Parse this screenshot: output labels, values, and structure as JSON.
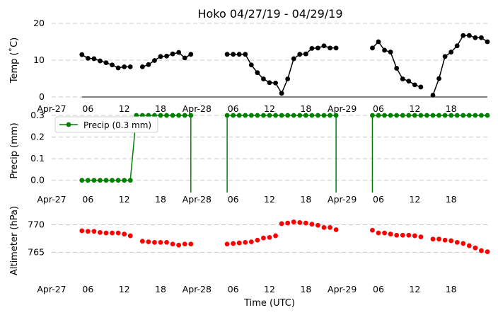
{
  "chart_data": {
    "title": "Hoko 04/27/19 - 04/29/19",
    "xlabel": "Time (UTC)",
    "x_tick_labels": [
      "Apr-27",
      "06",
      "12",
      "18",
      "Apr-28",
      "06",
      "12",
      "18",
      "Apr-29",
      "06",
      "12",
      "18"
    ],
    "x_tick_hours": [
      0,
      6,
      12,
      18,
      24,
      30,
      36,
      42,
      48,
      54,
      60,
      66
    ],
    "x_range_hours": [
      0,
      72
    ],
    "grid": "horizontal dashed",
    "panels": [
      {
        "type": "line",
        "ylabel": "Temp ($^{\\circ}$C)",
        "ylabel_display": "Temp (˚C)",
        "ylim": [
          0,
          20
        ],
        "yticks": [
          0,
          10,
          20
        ],
        "color": "#000000",
        "baseline": 0,
        "series": [
          {
            "name": "",
            "hours": [
              5,
              6,
              7,
              8,
              9,
              10,
              11,
              12,
              13
            ],
            "values": [
              11.5,
              10.5,
              10.4,
              9.8,
              9.3,
              8.7,
              7.9,
              8.2,
              8.2
            ]
          },
          {
            "name": "",
            "hours": [
              15,
              16,
              17,
              18,
              19,
              20,
              21,
              22,
              23
            ],
            "values": [
              8.2,
              8.8,
              9.9,
              11.0,
              11.1,
              11.7,
              12.1,
              10.6,
              11.6
            ]
          },
          {
            "name": "",
            "hours": [
              29,
              30,
              31,
              32,
              33,
              34,
              35,
              36,
              37,
              38,
              39,
              40,
              41,
              42,
              43,
              44,
              45,
              46,
              47
            ],
            "values": [
              11.6,
              11.6,
              11.6,
              11.6,
              8.7,
              6.6,
              4.9,
              3.9,
              3.8,
              1.0,
              4.9,
              10.4,
              11.6,
              11.7,
              13.2,
              13.3,
              13.9,
              13.3,
              13.3
            ]
          },
          {
            "name": "",
            "hours": [
              53,
              54,
              55,
              56,
              57,
              58,
              59,
              60,
              61
            ],
            "values": [
              13.3,
              15.0,
              12.7,
              12.2,
              7.8,
              4.9,
              4.3,
              3.3,
              2.7
            ]
          },
          {
            "name": "",
            "hours": [
              63,
              64,
              65,
              66,
              67,
              68,
              69,
              70,
              71,
              72
            ],
            "values": [
              0.5,
              5.0,
              11.0,
              12.2,
              13.9,
              16.7,
              16.7,
              16.1,
              16.1,
              15.0
            ]
          }
        ]
      },
      {
        "type": "line",
        "ylabel": "Precip (mm)",
        "ylim": [
          -0.05,
          0.3
        ],
        "yticks": [
          0.0,
          0.1,
          0.2,
          0.3
        ],
        "ytick_labels": [
          "0.0",
          "0.1",
          "0.2",
          "0.3"
        ],
        "color": "#008000",
        "legend": {
          "label": "Precip (0.3 mm)",
          "position": "upper-left"
        },
        "series": [
          {
            "name": "",
            "hours": [
              5,
              6,
              7,
              8,
              9,
              10,
              11,
              12,
              13,
              14,
              15,
              16,
              17,
              18,
              19,
              20,
              21,
              22,
              23
            ],
            "values": [
              0,
              0,
              0,
              0,
              0,
              0,
              0,
              0,
              0,
              0.3,
              0.3,
              0.3,
              0.3,
              0.3,
              0.3,
              0.3,
              0.3,
              0.3,
              0.3
            ]
          },
          {
            "name": "",
            "hours": [
              29,
              30,
              31,
              32,
              33,
              34,
              35,
              36,
              37,
              38,
              39,
              40,
              41,
              42,
              43,
              44,
              45,
              46,
              47
            ],
            "values": [
              0.3,
              0.3,
              0.3,
              0.3,
              0.3,
              0.3,
              0.3,
              0.3,
              0.3,
              0.3,
              0.3,
              0.3,
              0.3,
              0.3,
              0.3,
              0.3,
              0.3,
              0.3,
              0.3
            ]
          },
          {
            "name": "",
            "hours": [
              53,
              54,
              55,
              56,
              57,
              58,
              59,
              60,
              61,
              62,
              63,
              64,
              65,
              66,
              67,
              68,
              69,
              70,
              71,
              72
            ],
            "values": [
              0.3,
              0.3,
              0.3,
              0.3,
              0.3,
              0.3,
              0.3,
              0.3,
              0.3,
              0.3,
              0.3,
              0.3,
              0.3,
              0.3,
              0.3,
              0.3,
              0.3,
              0.3,
              0.3,
              0.3
            ]
          }
        ],
        "drops_to_hours": [
          23,
          29,
          47,
          53
        ]
      },
      {
        "type": "line",
        "ylabel": "Altimeter (hPa)",
        "ylim": [
          760.3,
          772.5
        ],
        "yticks": [
          765,
          770
        ],
        "color": "#ff0000",
        "markers_only": true,
        "series": [
          {
            "name": "",
            "hours": [
              5,
              6,
              7,
              8,
              9,
              10,
              11,
              12,
              13
            ],
            "values": [
              768.9,
              768.8,
              768.8,
              768.6,
              768.5,
              768.5,
              768.5,
              768.3,
              768.0
            ]
          },
          {
            "name": "",
            "hours": [
              15,
              16,
              17,
              18,
              19,
              20,
              21,
              22,
              23
            ],
            "values": [
              767.0,
              766.9,
              766.8,
              766.8,
              766.8,
              766.5,
              766.3,
              766.5,
              766.5
            ]
          },
          {
            "name": "",
            "hours": [
              29,
              30,
              31,
              32,
              33,
              34,
              35,
              36,
              37,
              38,
              39,
              40,
              41,
              42,
              43,
              44,
              45,
              46,
              47
            ],
            "values": [
              766.5,
              766.6,
              766.7,
              766.8,
              766.9,
              767.2,
              767.6,
              767.7,
              768.0,
              770.2,
              770.3,
              770.5,
              770.4,
              770.3,
              770.1,
              769.9,
              769.5,
              769.5,
              769.1
            ]
          },
          {
            "name": "",
            "hours": [
              53,
              54,
              55,
              56,
              57,
              58,
              59,
              60,
              61
            ],
            "values": [
              769.0,
              768.5,
              768.5,
              768.3,
              768.1,
              768.1,
              768.1,
              768.0,
              767.8
            ]
          },
          {
            "name": "",
            "hours": [
              63,
              64,
              65,
              66,
              67,
              68,
              69,
              70,
              71,
              72
            ],
            "values": [
              767.4,
              767.4,
              767.2,
              767.1,
              766.8,
              766.6,
              766.2,
              765.8,
              765.3,
              765.1
            ]
          }
        ]
      }
    ]
  }
}
